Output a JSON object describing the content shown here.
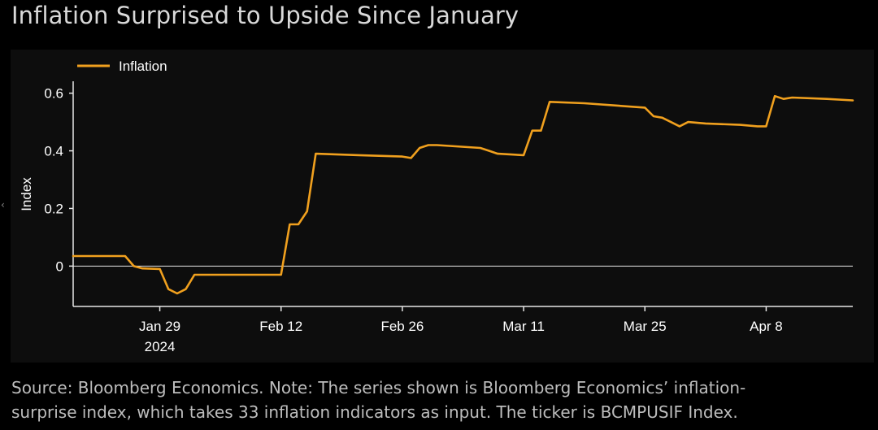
{
  "title": "Inflation Surprised to Upside Since January",
  "source": {
    "line1": "Source: Bloomberg Economics. Note: The series shown is Bloomberg Economics’ inflation-",
    "line2": "surprise index, which takes 33 inflation indicators as input. The ticker is BCMPUSIF Index."
  },
  "side_glyph": "‹",
  "colors": {
    "background": "#000000",
    "plot_background": "#0d0d0d",
    "series": "#f0a01e",
    "axis": "#e6e6e6",
    "text": "#ffffff",
    "title_text": "#d9d9d9",
    "source_text": "#bdbdbd"
  },
  "chart_data": {
    "type": "line",
    "title": "Inflation Surprised to Upside Since January",
    "xlabel": "",
    "ylabel": "Index",
    "xlim": [
      "2024-01-19",
      "2024-04-18"
    ],
    "ylim": [
      -0.14,
      0.63
    ],
    "yticks": [
      {
        "value": 0.6,
        "label": "0.6"
      },
      {
        "value": 0.4,
        "label": "0.4"
      },
      {
        "value": 0.2,
        "label": "0.2"
      },
      {
        "value": 0,
        "label": "0"
      }
    ],
    "xticks": [
      {
        "date": "2024-01-29",
        "label": "Jan 29",
        "sublabel": "2024"
      },
      {
        "date": "2024-02-12",
        "label": "Feb 12",
        "sublabel": ""
      },
      {
        "date": "2024-02-26",
        "label": "Feb 26",
        "sublabel": ""
      },
      {
        "date": "2024-03-11",
        "label": "Mar 11",
        "sublabel": ""
      },
      {
        "date": "2024-03-25",
        "label": "Mar 25",
        "sublabel": ""
      },
      {
        "date": "2024-04-08",
        "label": "Apr 8",
        "sublabel": ""
      }
    ],
    "zero_line": true,
    "grid": false,
    "legend": "top-left",
    "series": [
      {
        "name": "Inflation",
        "color": "#f0a01e",
        "points": [
          [
            "2024-01-19",
            0.035
          ],
          [
            "2024-01-24",
            0.035
          ],
          [
            "2024-01-25",
            0.035
          ],
          [
            "2024-01-26",
            0.0
          ],
          [
            "2024-01-27",
            -0.008
          ],
          [
            "2024-01-29",
            -0.01
          ],
          [
            "2024-01-30",
            -0.08
          ],
          [
            "2024-01-31",
            -0.095
          ],
          [
            "2024-02-01",
            -0.08
          ],
          [
            "2024-02-02",
            -0.03
          ],
          [
            "2024-02-05",
            -0.03
          ],
          [
            "2024-02-09",
            -0.03
          ],
          [
            "2024-02-12",
            -0.03
          ],
          [
            "2024-02-13",
            0.145
          ],
          [
            "2024-02-14",
            0.145
          ],
          [
            "2024-02-15",
            0.19
          ],
          [
            "2024-02-16",
            0.39
          ],
          [
            "2024-02-21",
            0.385
          ],
          [
            "2024-02-26",
            0.38
          ],
          [
            "2024-02-27",
            0.375
          ],
          [
            "2024-02-28",
            0.41
          ],
          [
            "2024-02-29",
            0.42
          ],
          [
            "2024-03-01",
            0.42
          ],
          [
            "2024-03-06",
            0.41
          ],
          [
            "2024-03-07",
            0.4
          ],
          [
            "2024-03-08",
            0.39
          ],
          [
            "2024-03-11",
            0.385
          ],
          [
            "2024-03-12",
            0.47
          ],
          [
            "2024-03-13",
            0.47
          ],
          [
            "2024-03-14",
            0.57
          ],
          [
            "2024-03-18",
            0.565
          ],
          [
            "2024-03-25",
            0.55
          ],
          [
            "2024-03-26",
            0.52
          ],
          [
            "2024-03-27",
            0.515
          ],
          [
            "2024-03-28",
            0.5
          ],
          [
            "2024-03-29",
            0.485
          ],
          [
            "2024-03-30",
            0.5
          ],
          [
            "2024-04-01",
            0.495
          ],
          [
            "2024-04-05",
            0.49
          ],
          [
            "2024-04-07",
            0.485
          ],
          [
            "2024-04-08",
            0.485
          ],
          [
            "2024-04-09",
            0.59
          ],
          [
            "2024-04-10",
            0.58
          ],
          [
            "2024-04-11",
            0.585
          ],
          [
            "2024-04-15",
            0.58
          ],
          [
            "2024-04-18",
            0.575
          ]
        ]
      }
    ]
  }
}
